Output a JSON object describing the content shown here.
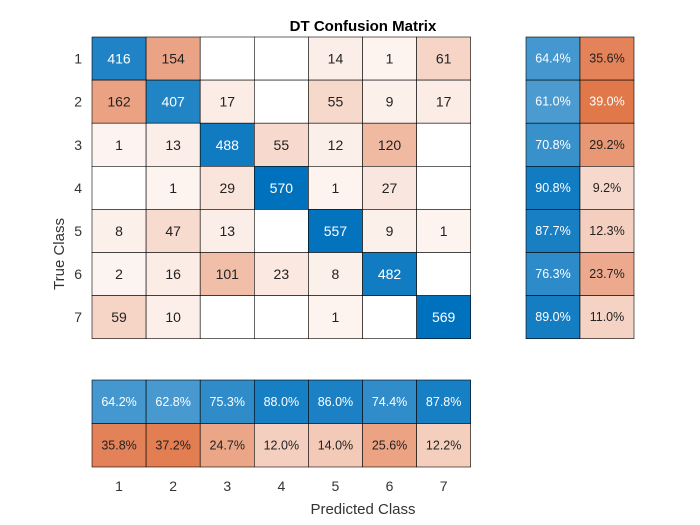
{
  "chart_data": {
    "type": "heatmap",
    "title": "DT Confusion Matrix",
    "xlabel": "Predicted Class",
    "ylabel": "True Class",
    "classes": [
      "1",
      "2",
      "3",
      "4",
      "5",
      "6",
      "7"
    ],
    "matrix": [
      [
        416,
        154,
        null,
        null,
        14,
        1,
        61
      ],
      [
        162,
        407,
        17,
        null,
        55,
        9,
        17
      ],
      [
        1,
        13,
        488,
        55,
        12,
        120,
        null
      ],
      [
        null,
        1,
        29,
        570,
        1,
        27,
        null
      ],
      [
        8,
        47,
        13,
        null,
        557,
        9,
        1
      ],
      [
        2,
        16,
        101,
        23,
        8,
        482,
        null
      ],
      [
        59,
        10,
        null,
        null,
        1,
        null,
        569
      ]
    ],
    "row_summary": [
      [
        "64.4%",
        "35.6%"
      ],
      [
        "61.0%",
        "39.0%"
      ],
      [
        "70.8%",
        "29.2%"
      ],
      [
        "90.8%",
        "9.2%"
      ],
      [
        "87.7%",
        "12.3%"
      ],
      [
        "76.3%",
        "23.7%"
      ],
      [
        "89.0%",
        "11.0%"
      ]
    ],
    "column_summary": {
      "correct": [
        "64.2%",
        "62.8%",
        "75.3%",
        "88.0%",
        "86.0%",
        "74.4%",
        "87.8%"
      ],
      "incorrect": [
        "35.8%",
        "37.2%",
        "24.7%",
        "12.0%",
        "14.0%",
        "25.6%",
        "12.2%"
      ]
    },
    "colors": {
      "correct": "#0072bd",
      "incorrect": "#d95319",
      "grid": "#000000"
    }
  }
}
